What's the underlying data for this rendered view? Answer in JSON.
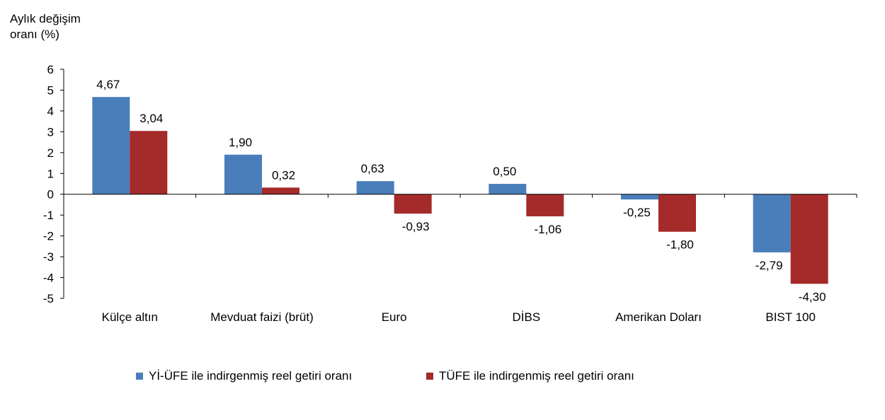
{
  "chart_data": {
    "type": "bar",
    "title": "",
    "ylabel": "Aylık değişim\noranı (%)",
    "xlabel": "",
    "ylim": [
      -5,
      6
    ],
    "yticks": [
      6,
      5,
      4,
      3,
      2,
      1,
      0,
      -1,
      -2,
      -3,
      -4,
      -5
    ],
    "grid": false,
    "legend_position": "bottom",
    "categories": [
      "Külçe altın",
      "Mevduat faizi (brüt)",
      "Euro",
      "DİBS",
      "Amerikan Doları",
      "BIST 100"
    ],
    "series": [
      {
        "name": "Yİ-ÜFE ile indirgenmiş reel getiri oranı",
        "color": "#4a7ebb",
        "values": [
          4.67,
          1.9,
          0.63,
          0.5,
          -0.25,
          -2.79
        ],
        "labels": [
          "4,67",
          "1,90",
          "0,63",
          "0,50",
          "-0,25",
          "-2,79"
        ]
      },
      {
        "name": "TÜFE ile indirgenmiş reel getiri oranı",
        "color": "#a52a2a",
        "values": [
          3.04,
          0.32,
          -0.93,
          -1.06,
          -1.8,
          -4.3
        ],
        "labels": [
          "3,04",
          "0,32",
          "-0,93",
          "-1,06",
          "-1,80",
          "-4,30"
        ]
      }
    ]
  }
}
